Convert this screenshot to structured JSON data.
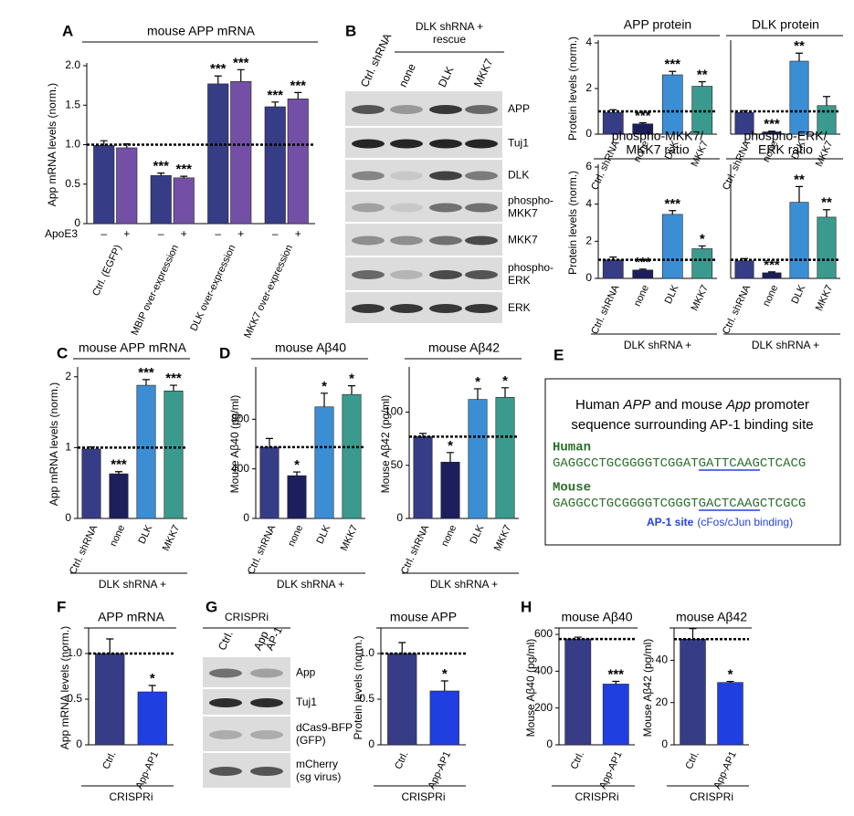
{
  "chart_data": [
    {
      "type": "bar",
      "panel": "A",
      "title": [
        "mouse APP mRNA"
      ],
      "ylabel": "App mRNA levels (norm.)",
      "ylim": [
        0,
        2
      ],
      "yticks": [
        0,
        0.5,
        {
          "value": 1,
          "label": "1.0"
        },
        1.5,
        {
          "value": 2,
          "label": "2.0"
        }
      ],
      "reference_line": 1,
      "categories": [
        "Ctrl. (EGFP)",
        "MBIP over-expression",
        "DLK over-expression",
        "MKK7 over-expression"
      ],
      "series_label": "ApoE3",
      "series": [
        {
          "name": "–",
          "color": "#363d86",
          "values": [
            0.99,
            0.61,
            1.77,
            1.48
          ],
          "errors": [
            0.06,
            0.03,
            0.1,
            0.06
          ],
          "stars": [
            null,
            "***",
            "***",
            "***"
          ]
        },
        {
          "name": "+",
          "color": "#7350a6",
          "values": [
            0.96,
            0.58,
            1.8,
            1.58
          ],
          "errors": [
            0.05,
            0.02,
            0.15,
            0.08
          ],
          "stars": [
            null,
            "***",
            "***",
            "***"
          ]
        }
      ]
    },
    {
      "type": "bar",
      "title": [
        "APP protein"
      ],
      "ylabel": "Protein levels (norm.)",
      "ylim": [
        0,
        4
      ],
      "yticks": [
        0,
        2,
        4
      ],
      "reference_line": 1,
      "categories": [
        "Ctrl. shRNA",
        "none",
        "DLK",
        "MKK7"
      ],
      "values": [
        0.95,
        0.45,
        2.6,
        2.1
      ],
      "errors": [
        0.12,
        0.05,
        0.15,
        0.2
      ],
      "stars": [
        null,
        "***",
        "***",
        "**"
      ],
      "colors": [
        "#363d86",
        "#1c1f5c",
        "#3c8ed4",
        "#3a9a8e"
      ]
    },
    {
      "type": "bar",
      "title": [
        "DLK protein"
      ],
      "ylim": [
        0,
        4
      ],
      "reference_line": 1,
      "categories": [
        "Ctrl. shRNA",
        "none",
        "DLK",
        "MKK7"
      ],
      "values": [
        0.95,
        0.1,
        3.2,
        1.25
      ],
      "errors": [
        0.08,
        0.03,
        0.35,
        0.4
      ],
      "stars": [
        null,
        "***",
        "**",
        null
      ],
      "colors": [
        "#363d86",
        "#1c1f5c",
        "#3c8ed4",
        "#3a9a8e"
      ]
    },
    {
      "type": "bar",
      "title": [
        "phospho-MKK7/",
        "MKK7 ratio"
      ],
      "ylabel": "Protein levels (norm.)",
      "ylim": [
        0,
        6
      ],
      "yticks": [
        0,
        2,
        4,
        6
      ],
      "reference_line": 1,
      "categories": [
        "Ctrl. shRNA",
        "none",
        "DLK",
        "MKK7"
      ],
      "values": [
        1.0,
        0.45,
        3.45,
        1.6
      ],
      "errors": [
        0.15,
        0.05,
        0.2,
        0.15
      ],
      "stars": [
        null,
        "***",
        "***",
        "*"
      ],
      "colors": [
        "#363d86",
        "#1c1f5c",
        "#3c8ed4",
        "#3a9a8e"
      ],
      "group_label": "DLK shRNA +"
    },
    {
      "type": "bar",
      "title": [
        "phospho-ERK/",
        "ERK ratio"
      ],
      "ylim": [
        0,
        6
      ],
      "reference_line": 1,
      "categories": [
        "Ctrl. shRNA",
        "none",
        "DLK",
        "MKK7"
      ],
      "values": [
        0.95,
        0.3,
        4.1,
        3.3
      ],
      "errors": [
        0.12,
        0.05,
        0.85,
        0.4
      ],
      "stars": [
        null,
        "***",
        "**",
        "**"
      ],
      "colors": [
        "#363d86",
        "#1c1f5c",
        "#3c8ed4",
        "#3a9a8e"
      ],
      "group_label": "DLK shRNA +"
    },
    {
      "type": "bar",
      "panel": "C",
      "title": [
        "mouse APP mRNA"
      ],
      "ylabel": "App mRNA levels (norm.)",
      "ylim": [
        0,
        2.1
      ],
      "yticks": [
        0,
        1,
        2
      ],
      "reference_line": 1,
      "categories": [
        "Ctrl. shRNA",
        "none",
        "DLK",
        "MKK7"
      ],
      "values": [
        0.98,
        0.63,
        1.88,
        1.8
      ],
      "errors": [
        0.03,
        0.03,
        0.08,
        0.08
      ],
      "stars": [
        null,
        "***",
        "***",
        "***"
      ],
      "colors": [
        "#363d86",
        "#1c1f5c",
        "#3c8ed4",
        "#3a9a8e"
      ],
      "group_label": "DLK shRNA +"
    },
    {
      "type": "bar",
      "panel": "D",
      "title": [
        "mouse Aβ40"
      ],
      "ylabel": "Mouse Aβ40 (pg/ml)",
      "ylim": [
        0,
        1200
      ],
      "yticks": [
        0,
        400,
        800
      ],
      "reference_line": 575,
      "categories": [
        "Ctrl. shRNA",
        "none",
        "DLK",
        "MKK7"
      ],
      "values": [
        575,
        345,
        900,
        1000
      ],
      "errors": [
        70,
        30,
        110,
        70
      ],
      "stars": [
        null,
        "*",
        "*",
        "*"
      ],
      "colors": [
        "#363d86",
        "#1c1f5c",
        "#3c8ed4",
        "#3a9a8e"
      ],
      "group_label": "DLK shRNA +"
    },
    {
      "type": "bar",
      "title": [
        "mouse Aβ42"
      ],
      "ylabel": "Mouse Aβ42 (pg/ml)",
      "ylim": [
        0,
        140
      ],
      "yticks": [
        0,
        50,
        100
      ],
      "reference_line": 77,
      "categories": [
        "Ctrl. shRNA",
        "none",
        "DLK",
        "MKK7"
      ],
      "values": [
        77,
        53,
        112,
        114
      ],
      "errors": [
        3,
        9,
        10,
        9
      ],
      "stars": [
        null,
        "*",
        "*",
        "*"
      ],
      "colors": [
        "#363d86",
        "#1c1f5c",
        "#3c8ed4",
        "#3a9a8e"
      ],
      "group_label": "DLK shRNA +"
    },
    {
      "type": "bar",
      "panel": "F",
      "title": [
        "APP mRNA"
      ],
      "ylabel": "App mRNA levels (norm.)",
      "ylim": [
        0,
        1.25
      ],
      "yticks": [
        0,
        0.5,
        {
          "value": 1,
          "label": "1.0"
        }
      ],
      "reference_line": 1,
      "categories": [
        "Ctrl.",
        "App-AP1"
      ],
      "values": [
        1.0,
        0.58
      ],
      "errors": [
        0.16,
        0.07
      ],
      "stars": [
        null,
        "*"
      ],
      "colors": [
        "#363d86",
        "#1f3fe0"
      ],
      "group_label": "CRISPRi"
    },
    {
      "type": "bar",
      "title": [
        "mouse APP"
      ],
      "ylabel": "Protein levels (norm.)",
      "ylim": [
        0,
        1.25
      ],
      "yticks": [
        0,
        0.5,
        {
          "value": 1,
          "label": "1.0"
        }
      ],
      "reference_line": 1,
      "categories": [
        "Ctrl.",
        "App-AP1"
      ],
      "values": [
        1.0,
        0.59
      ],
      "errors": [
        0.12,
        0.11
      ],
      "stars": [
        null,
        "*"
      ],
      "colors": [
        "#363d86",
        "#1f3fe0"
      ],
      "group_label": "CRISPRi"
    },
    {
      "type": "bar",
      "panel": "H",
      "title": [
        "mouse Aβ40"
      ],
      "ylabel": "Mouse Aβ40 (pg/ml)",
      "ylim": [
        0,
        620
      ],
      "yticks": [
        0,
        200,
        400,
        600
      ],
      "reference_line": 575,
      "categories": [
        "Ctrl.",
        "App-AP1"
      ],
      "values": [
        575,
        330
      ],
      "errors": [
        10,
        15
      ],
      "stars": [
        null,
        "***"
      ],
      "colors": [
        "#363d86",
        "#1f3fe0"
      ],
      "group_label": "CRISPRi"
    },
    {
      "type": "bar",
      "title": [
        "mouse Aβ42"
      ],
      "ylabel": "Mouse Aβ42 (pg/ml)",
      "ylim": [
        0,
        54
      ],
      "yticks": [
        0,
        20,
        40
      ],
      "reference_line": 50,
      "categories": [
        "Ctrl.",
        "App-AP1"
      ],
      "values": [
        50,
        29.5
      ],
      "errors": [
        5,
        0.5
      ],
      "stars": [
        null,
        "*"
      ],
      "colors": [
        "#363d86",
        "#1f3fe0"
      ],
      "group_label": "CRISPRi"
    }
  ],
  "blots": [
    {
      "panel": "B",
      "header": [
        "DLK shRNA +",
        "rescue"
      ],
      "lanes": [
        [
          "Ctrl. shRNA"
        ],
        [
          "none"
        ],
        [
          "DLK"
        ],
        [
          "MKK7"
        ]
      ],
      "rows": [
        [
          "APP"
        ],
        [
          "Tuj1"
        ],
        [
          "DLK"
        ],
        [
          "phospho-",
          "MKK7"
        ],
        [
          "MKK7"
        ],
        [
          "phospho-",
          "ERK"
        ],
        [
          "ERK"
        ]
      ]
    },
    {
      "panel": "G",
      "header": [
        "CRISPRi"
      ],
      "lanes": [
        [
          "Ctrl."
        ],
        [
          "App",
          "AP-1"
        ]
      ],
      "rows": [
        [
          "App"
        ],
        [
          "Tuj1"
        ],
        [
          "dCas9-BFP",
          "(GFP)"
        ],
        [
          "mCherry",
          "(sg virus)"
        ]
      ]
    }
  ],
  "sequence_panel": {
    "panel": "E",
    "title_parts": [
      "Human ",
      "APP",
      " and mouse ",
      "App",
      " promoter"
    ],
    "title_line2": "sequence surrounding AP-1 binding site",
    "species": [
      {
        "name": "Human",
        "sequence": [
          "GAGGCCTGCGGGGTCGGAT",
          "GATTCAAG",
          "CTCACG"
        ]
      },
      {
        "name": "Mouse",
        "sequence": [
          "GAGGCCTGCGGGGTCGGGT",
          "GACTCAAG",
          "CTCGCG"
        ]
      }
    ],
    "site_label": "AP-1 site",
    "site_note": "(cFos/cJun binding)"
  }
}
